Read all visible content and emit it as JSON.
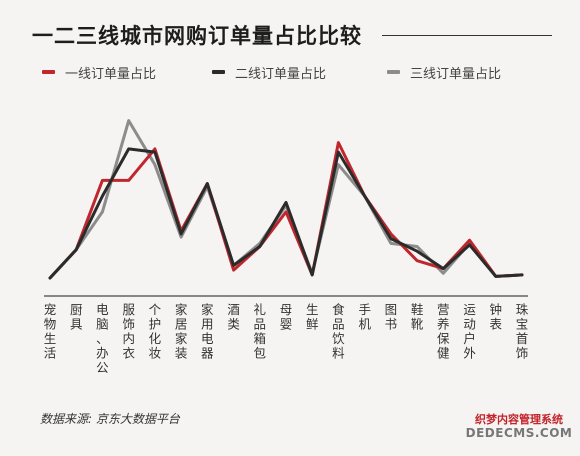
{
  "chart_data": {
    "type": "line",
    "title": "一二三线城市网购订单量占比比较",
    "categories": [
      "宠物生活",
      "厨具",
      "电脑、办公",
      "服饰内衣",
      "个护化妆",
      "家居家装",
      "家用电器",
      "酒类",
      "礼品箱包",
      "母婴",
      "生鲜",
      "食品饮料",
      "手机",
      "图书",
      "鞋靴",
      "营养保健",
      "运动户外",
      "钟表",
      "珠宝首饰"
    ],
    "series": [
      {
        "name": "一线订单量占比",
        "color": "#c0272d",
        "values": [
          0.0,
          0.9,
          3.1,
          3.1,
          4.1,
          1.5,
          3.0,
          0.25,
          1.0,
          2.1,
          0.1,
          4.3,
          2.6,
          1.4,
          0.55,
          0.3,
          1.2,
          0.05,
          0.1
        ]
      },
      {
        "name": "二线订单量占比",
        "color": "#2b2b2b",
        "values": [
          0.0,
          0.9,
          2.6,
          4.1,
          4.0,
          1.4,
          3.0,
          0.4,
          1.0,
          2.4,
          0.1,
          4.0,
          2.6,
          1.25,
          0.85,
          0.3,
          1.05,
          0.05,
          0.1
        ]
      },
      {
        "name": "三线订单量占比",
        "color": "#8c8c8c",
        "values": [
          0.0,
          0.9,
          2.1,
          5.0,
          3.6,
          1.3,
          2.9,
          0.4,
          1.1,
          2.3,
          0.15,
          3.6,
          2.6,
          1.1,
          1.0,
          0.15,
          1.1,
          0.05,
          0.1
        ]
      }
    ],
    "ylim": [
      0,
      5.4
    ],
    "grid": false,
    "legend_position": "top"
  },
  "source": "数据来源: 京东大数据平台",
  "watermark": {
    "line1": "织梦内容管理系统",
    "line2": "DEDECMS.COM"
  }
}
